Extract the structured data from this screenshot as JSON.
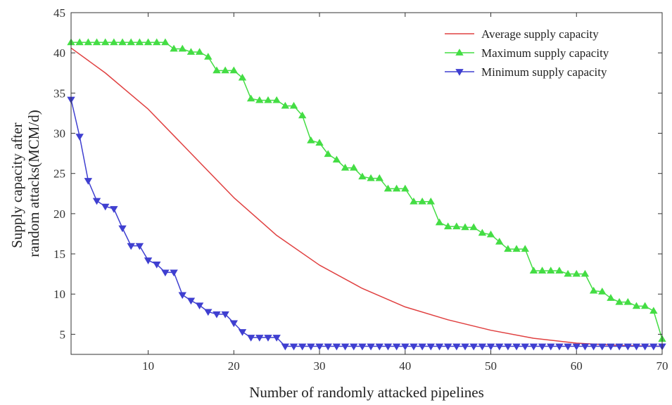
{
  "chart_data": {
    "type": "line",
    "xlabel": "Number of randomly attacked pipelines",
    "ylabel_lines": [
      "Supply capacity after",
      "random attacks(MCM/d)"
    ],
    "xlim": [
      1,
      70
    ],
    "ylim": [
      2.5,
      45
    ],
    "xticks": [
      10,
      20,
      30,
      40,
      50,
      60,
      70
    ],
    "yticks": [
      5,
      10,
      15,
      20,
      25,
      30,
      35,
      40,
      45
    ],
    "grid": false,
    "legend_position": "top-right",
    "series": [
      {
        "name": "Average supply capacity",
        "color": "#e04040",
        "marker": "none",
        "x": [
          1,
          5,
          10,
          15,
          20,
          25,
          30,
          35,
          40,
          45,
          50,
          55,
          60,
          65,
          70
        ],
        "values": [
          40.6,
          37.5,
          33.0,
          27.5,
          22.0,
          17.3,
          13.6,
          10.7,
          8.4,
          6.8,
          5.5,
          4.5,
          3.9,
          3.6,
          3.5
        ]
      },
      {
        "name": "Maximum supply capacity",
        "color": "#44dd44",
        "marker": "triangle-up",
        "x": [
          1,
          2,
          3,
          4,
          5,
          6,
          7,
          8,
          9,
          10,
          11,
          12,
          13,
          14,
          15,
          16,
          17,
          18,
          19,
          20,
          21,
          22,
          23,
          24,
          25,
          26,
          27,
          28,
          29,
          30,
          31,
          32,
          33,
          34,
          35,
          36,
          37,
          38,
          39,
          40,
          41,
          42,
          43,
          44,
          45,
          46,
          47,
          48,
          49,
          50,
          51,
          52,
          53,
          54,
          55,
          56,
          57,
          58,
          59,
          60,
          61,
          62,
          63,
          64,
          65,
          66,
          67,
          68,
          69,
          70
        ],
        "values": [
          41.3,
          41.3,
          41.3,
          41.3,
          41.3,
          41.3,
          41.3,
          41.3,
          41.3,
          41.3,
          41.3,
          41.3,
          40.5,
          40.5,
          40.1,
          40.1,
          39.5,
          37.8,
          37.8,
          37.8,
          36.9,
          34.3,
          34.1,
          34.1,
          34.1,
          33.4,
          33.4,
          32.2,
          29.1,
          28.8,
          27.4,
          26.7,
          25.7,
          25.7,
          24.6,
          24.4,
          24.4,
          23.1,
          23.1,
          23.1,
          21.5,
          21.5,
          21.5,
          18.9,
          18.4,
          18.4,
          18.3,
          18.3,
          17.6,
          17.4,
          16.5,
          15.6,
          15.6,
          15.6,
          12.9,
          12.9,
          12.9,
          12.9,
          12.5,
          12.5,
          12.5,
          10.4,
          10.3,
          9.5,
          9.0,
          9.0,
          8.5,
          8.5,
          7.9,
          4.4
        ]
      },
      {
        "name": "Minimum supply capacity",
        "color": "#3f3fd0",
        "marker": "triangle-down",
        "x": [
          1,
          2,
          3,
          4,
          5,
          6,
          7,
          8,
          9,
          10,
          11,
          12,
          13,
          14,
          15,
          16,
          17,
          18,
          19,
          20,
          21,
          22,
          23,
          24,
          25,
          26,
          27,
          28,
          29,
          30,
          31,
          32,
          33,
          34,
          35,
          36,
          37,
          38,
          39,
          40,
          41,
          42,
          43,
          44,
          45,
          46,
          47,
          48,
          49,
          50,
          51,
          52,
          53,
          54,
          55,
          56,
          57,
          58,
          59,
          60,
          61,
          62,
          63,
          64,
          65,
          66,
          67,
          68,
          69,
          70
        ],
        "values": [
          34.2,
          29.6,
          24.1,
          21.6,
          20.9,
          20.6,
          18.2,
          16.0,
          16.0,
          14.2,
          13.7,
          12.7,
          12.7,
          9.9,
          9.2,
          8.6,
          7.8,
          7.5,
          7.5,
          6.4,
          5.3,
          4.6,
          4.6,
          4.6,
          4.6,
          3.5,
          3.5,
          3.5,
          3.5,
          3.5,
          3.5,
          3.5,
          3.5,
          3.5,
          3.5,
          3.5,
          3.5,
          3.5,
          3.5,
          3.5,
          3.5,
          3.5,
          3.5,
          3.5,
          3.5,
          3.5,
          3.5,
          3.5,
          3.5,
          3.5,
          3.5,
          3.5,
          3.5,
          3.5,
          3.5,
          3.5,
          3.5,
          3.5,
          3.5,
          3.5,
          3.5,
          3.5,
          3.5,
          3.5,
          3.5,
          3.5,
          3.5,
          3.5,
          3.5,
          3.5
        ]
      }
    ]
  }
}
